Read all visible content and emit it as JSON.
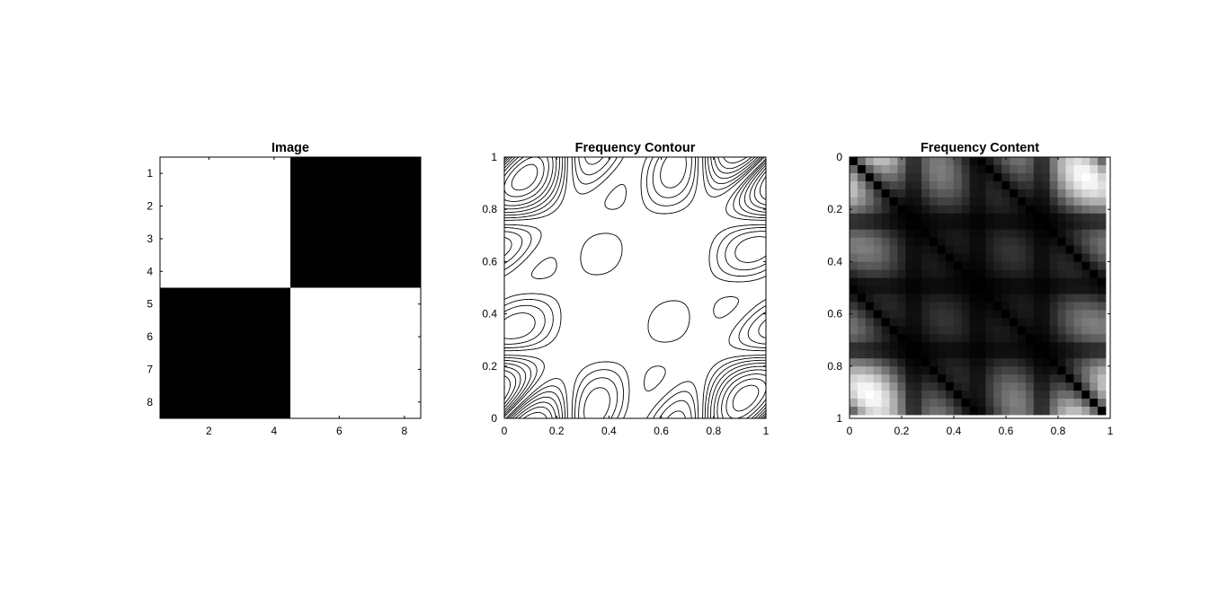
{
  "chart_data": [
    {
      "type": "heatmap",
      "title": "Image",
      "x_ticks": [
        2,
        4,
        6,
        8
      ],
      "y_ticks": [
        1,
        2,
        3,
        4,
        5,
        6,
        7,
        8
      ],
      "xlim": [
        0.5,
        8.5
      ],
      "ylim": [
        0.5,
        8.5
      ],
      "y_reversed": true,
      "colormap": "gray",
      "blocks": [
        {
          "x": [
            0.5,
            4.5
          ],
          "y": [
            0.5,
            4.5
          ],
          "value": 1
        },
        {
          "x": [
            4.5,
            8.5
          ],
          "y": [
            0.5,
            4.5
          ],
          "value": 0
        },
        {
          "x": [
            0.5,
            4.5
          ],
          "y": [
            4.5,
            8.5
          ],
          "value": 0
        },
        {
          "x": [
            4.5,
            8.5
          ],
          "y": [
            4.5,
            8.5
          ],
          "value": 1
        }
      ]
    },
    {
      "type": "contour",
      "title": "Frequency Contour",
      "x_ticks": [
        "0",
        "0.2",
        "0.4",
        "0.6",
        "0.8",
        "1"
      ],
      "y_ticks": [
        "0",
        "0.2",
        "0.4",
        "0.6",
        "0.8",
        "1"
      ],
      "xlim": [
        0,
        1
      ],
      "ylim": [
        0,
        1
      ],
      "colormap": "black"
    },
    {
      "type": "heatmap",
      "title": "Frequency Content",
      "x_ticks": [
        "0",
        "0.2",
        "0.4",
        "0.6",
        "0.8",
        "1"
      ],
      "y_ticks": [
        "0",
        "0.2",
        "0.4",
        "0.6",
        "0.8",
        "1"
      ],
      "xlim": [
        0,
        1
      ],
      "ylim": [
        0,
        1
      ],
      "y_reversed": true,
      "colormap": "gray"
    }
  ]
}
